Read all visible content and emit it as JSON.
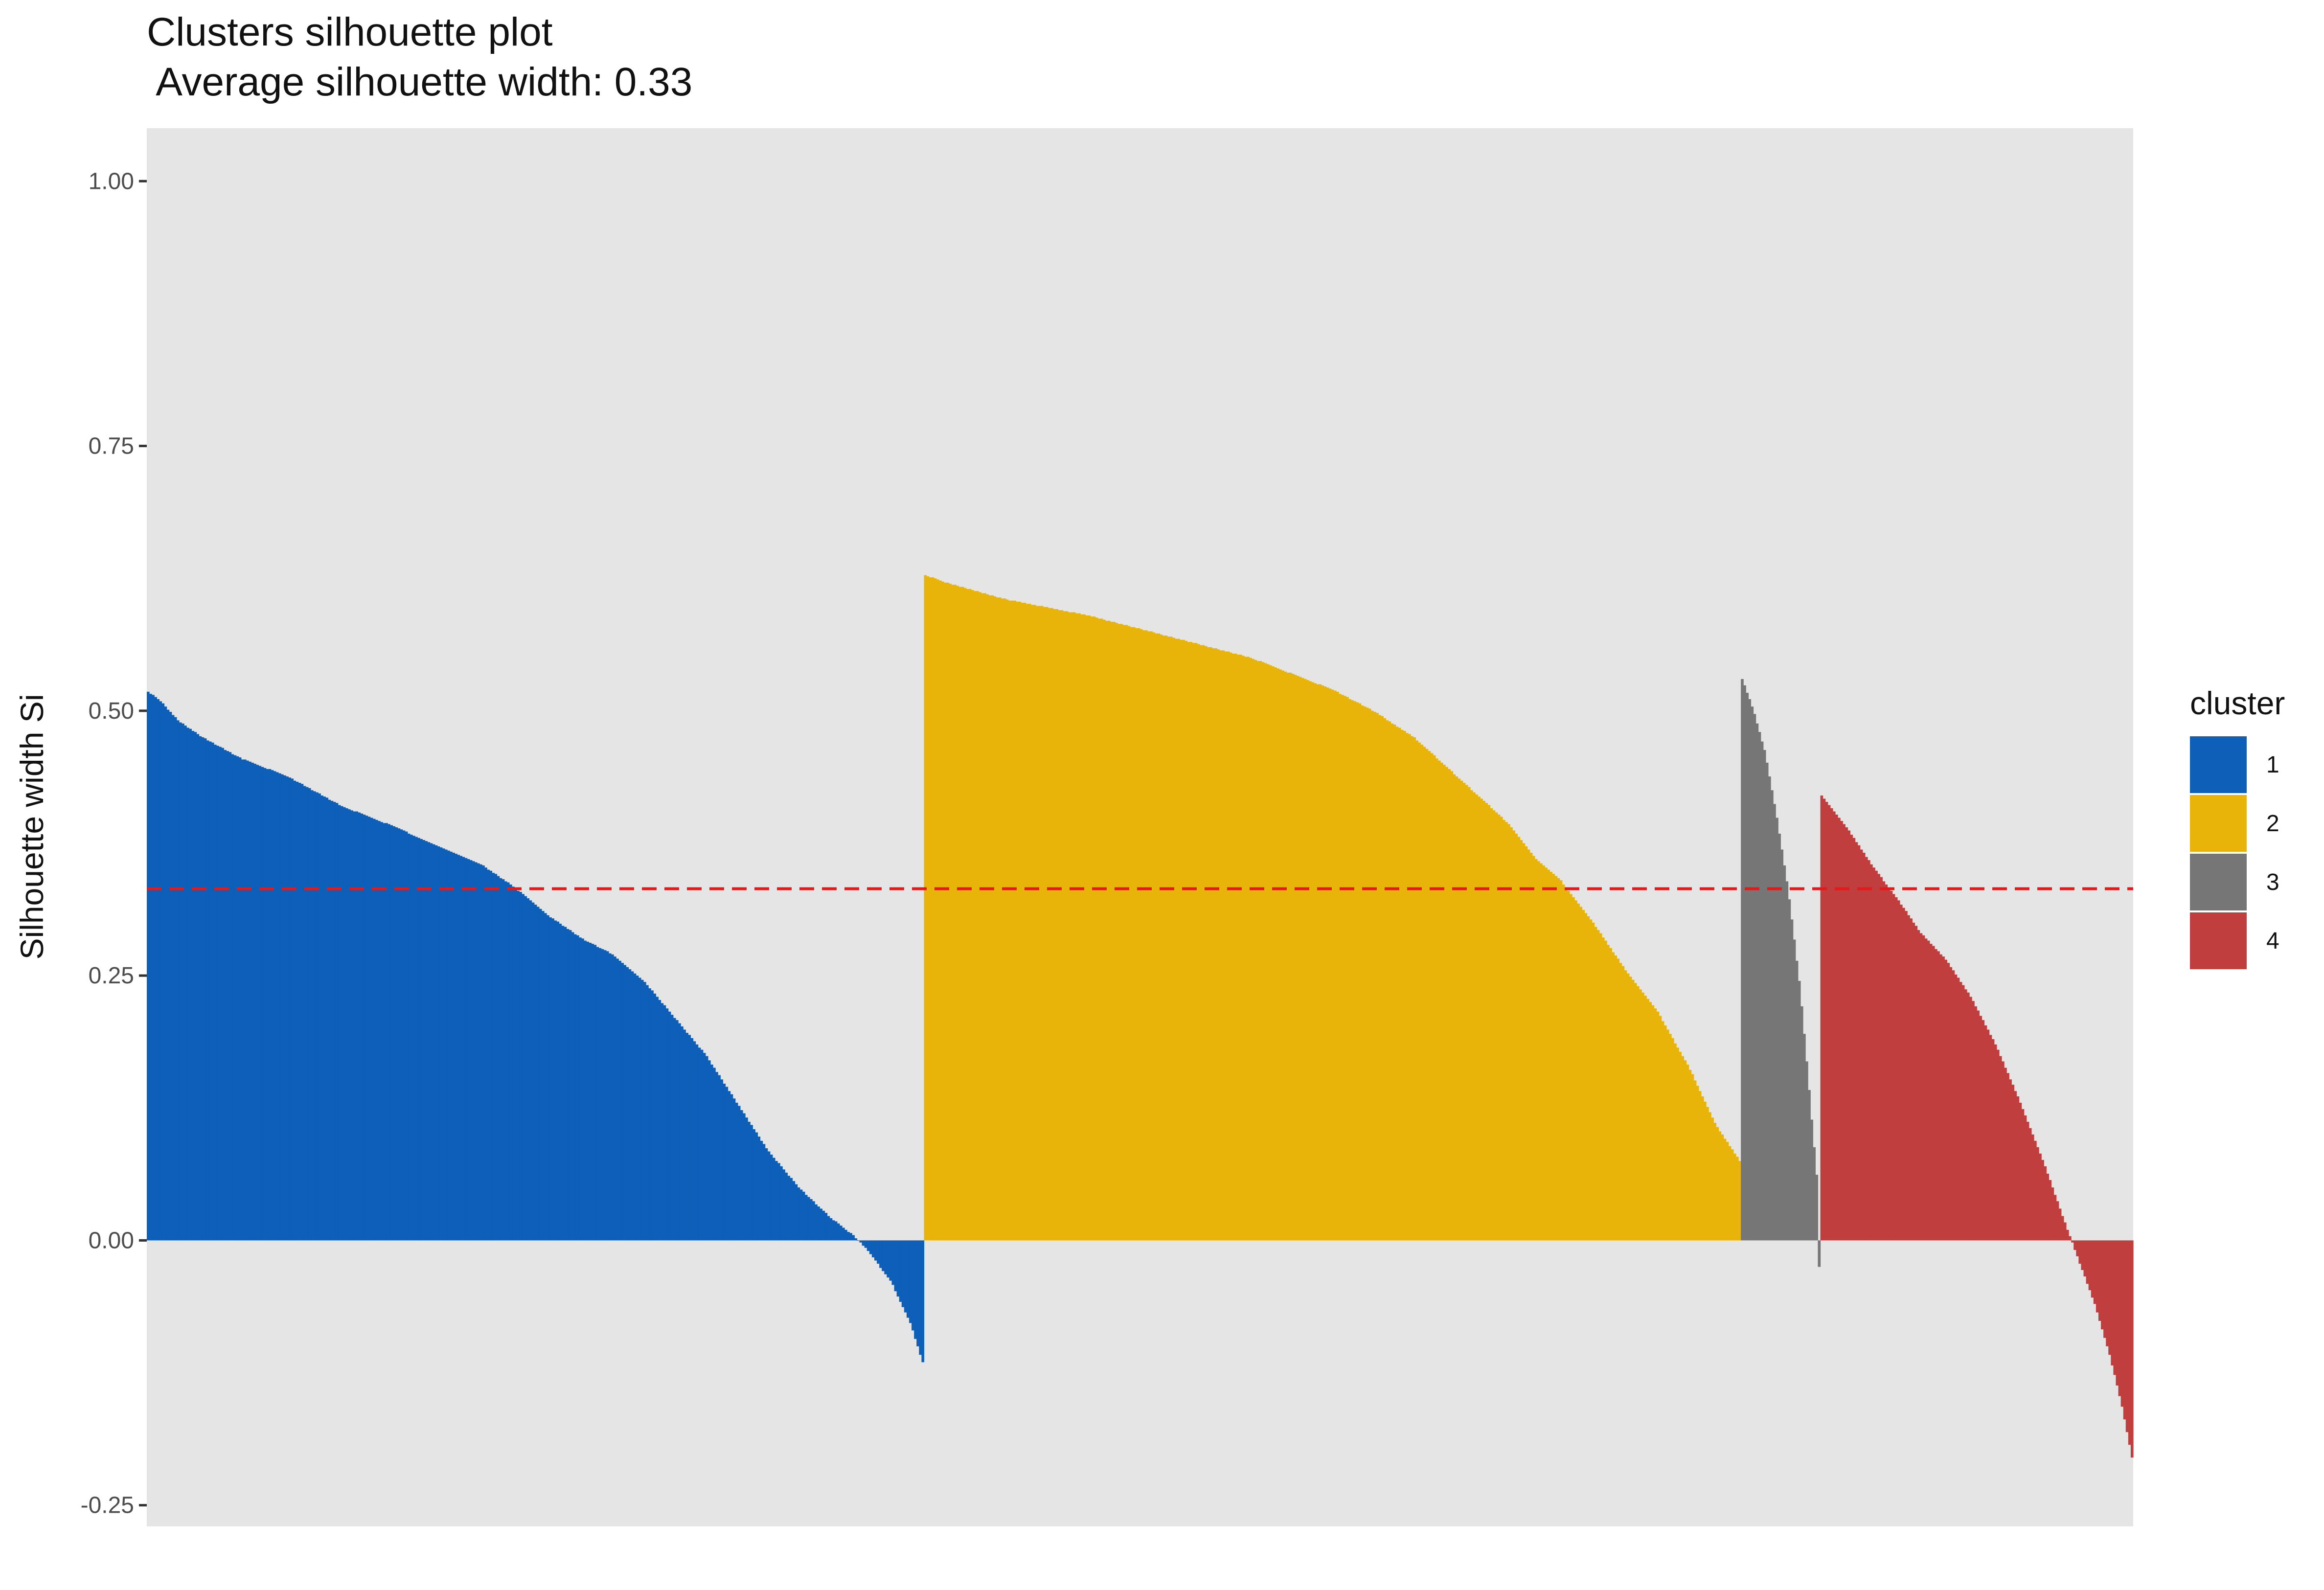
{
  "chart_data": {
    "type": "bar",
    "title": "Clusters silhouette plot",
    "subtitle": " Average silhouette width: 0.33",
    "xlabel": "",
    "ylabel": "Silhouette width Si",
    "ylim": [
      -0.27,
      1.05
    ],
    "yticks": [
      -0.25,
      0.0,
      0.25,
      0.5,
      0.75,
      1.0
    ],
    "ytick_labels": [
      "-0.25",
      "0.00",
      "0.25",
      "0.50",
      "0.75",
      "1.00"
    ],
    "average_silhouette_width": 0.33,
    "average_line": {
      "value": 0.332,
      "color": "#e31a1c",
      "style": "dashed"
    },
    "grid": false,
    "legend": {
      "title": "cluster",
      "position": "right"
    },
    "total_observations": 800,
    "series": [
      {
        "name": "1",
        "color": "#0d5fb8",
        "count": 313,
        "values_desc_profile": [
          [
            0.0,
            0.518
          ],
          [
            0.015,
            0.51
          ],
          [
            0.04,
            0.49
          ],
          [
            0.07,
            0.475
          ],
          [
            0.12,
            0.455
          ],
          [
            0.18,
            0.438
          ],
          [
            0.25,
            0.41
          ],
          [
            0.32,
            0.39
          ],
          [
            0.38,
            0.37
          ],
          [
            0.43,
            0.355
          ],
          [
            0.47,
            0.335
          ],
          [
            0.52,
            0.305
          ],
          [
            0.56,
            0.285
          ],
          [
            0.6,
            0.27
          ],
          [
            0.64,
            0.245
          ],
          [
            0.68,
            0.21
          ],
          [
            0.72,
            0.175
          ],
          [
            0.76,
            0.13
          ],
          [
            0.8,
            0.085
          ],
          [
            0.84,
            0.05
          ],
          [
            0.88,
            0.022
          ],
          [
            0.91,
            0.005
          ],
          [
            0.93,
            -0.01
          ],
          [
            0.96,
            -0.04
          ],
          [
            0.985,
            -0.08
          ],
          [
            1.0,
            -0.115
          ]
        ]
      },
      {
        "name": "2",
        "color": "#e8b40a",
        "count": 329,
        "values_desc_profile": [
          [
            0.0,
            0.628
          ],
          [
            0.03,
            0.62
          ],
          [
            0.1,
            0.605
          ],
          [
            0.2,
            0.59
          ],
          [
            0.3,
            0.57
          ],
          [
            0.4,
            0.55
          ],
          [
            0.5,
            0.52
          ],
          [
            0.55,
            0.5
          ],
          [
            0.6,
            0.475
          ],
          [
            0.65,
            0.44
          ],
          [
            0.7,
            0.405
          ],
          [
            0.72,
            0.39
          ],
          [
            0.75,
            0.36
          ],
          [
            0.78,
            0.34
          ],
          [
            0.82,
            0.3
          ],
          [
            0.86,
            0.255
          ],
          [
            0.9,
            0.215
          ],
          [
            0.94,
            0.16
          ],
          [
            0.97,
            0.11
          ],
          [
            1.0,
            0.075
          ]
        ]
      },
      {
        "name": "3",
        "color": "#767676",
        "count": 32,
        "values_desc_profile": [
          [
            0.0,
            0.53
          ],
          [
            0.15,
            0.5
          ],
          [
            0.3,
            0.46
          ],
          [
            0.45,
            0.4
          ],
          [
            0.6,
            0.33
          ],
          [
            0.75,
            0.24
          ],
          [
            0.85,
            0.16
          ],
          [
            0.92,
            0.1
          ],
          [
            0.97,
            0.06
          ],
          [
            1.0,
            -0.025
          ]
        ]
      },
      {
        "name": "4",
        "color": "#c13e3e",
        "count": 126,
        "values_desc_profile": [
          [
            0.0,
            0.42
          ],
          [
            0.08,
            0.39
          ],
          [
            0.16,
            0.355
          ],
          [
            0.25,
            0.32
          ],
          [
            0.32,
            0.29
          ],
          [
            0.4,
            0.265
          ],
          [
            0.48,
            0.23
          ],
          [
            0.56,
            0.185
          ],
          [
            0.64,
            0.13
          ],
          [
            0.72,
            0.07
          ],
          [
            0.78,
            0.02
          ],
          [
            0.83,
            -0.02
          ],
          [
            0.88,
            -0.06
          ],
          [
            0.93,
            -0.11
          ],
          [
            0.97,
            -0.16
          ],
          [
            1.0,
            -0.205
          ]
        ]
      }
    ]
  }
}
